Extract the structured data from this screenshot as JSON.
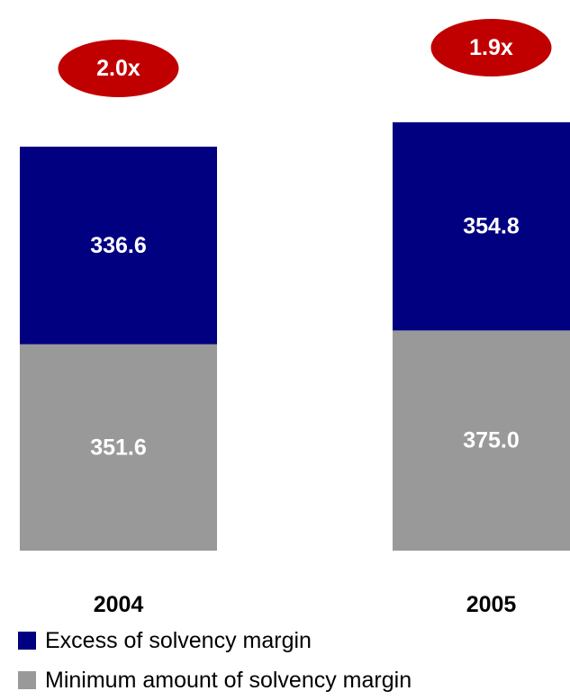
{
  "chart_data": {
    "type": "bar",
    "stacked": true,
    "categories": [
      "2004",
      "2005"
    ],
    "series": [
      {
        "name": "Minimum amount of solvency margin",
        "values": [
          351.6,
          375.0
        ],
        "value_labels": [
          "351.6",
          "375.0"
        ],
        "color": "#999999"
      },
      {
        "name": "Excess of solvency margin",
        "values": [
          336.6,
          354.8
        ],
        "value_labels": [
          "336.6",
          "354.8"
        ],
        "color": "#000080"
      }
    ],
    "annotations": [
      {
        "category": "2004",
        "value": 2.0,
        "text": "2.0x"
      },
      {
        "category": "2005",
        "value": 1.9,
        "text": "1.9x"
      }
    ],
    "annotation_color": "#c00000",
    "legend": "bottom-left",
    "grid": false,
    "axes_visible": false
  }
}
